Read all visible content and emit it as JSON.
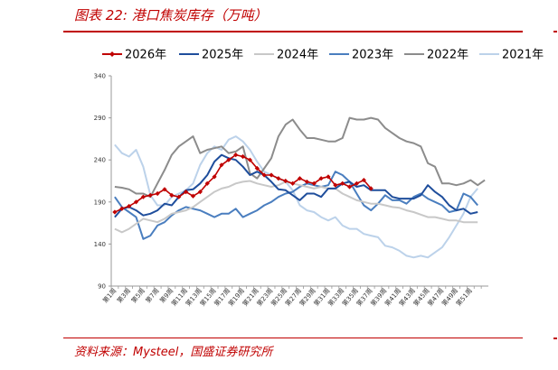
{
  "page": {
    "title": "图表 22:  港口焦炭库存（万吨）",
    "source": "资料来源：Mysteel，国盛证券研究所"
  },
  "colors": {
    "accent": "#c00000",
    "s2026": "#c00000",
    "s2025": "#1f4e9c",
    "s2024": "#c8c8c8",
    "s2023": "#4a7ebf",
    "s2022": "#8c8c8c",
    "s2021": "#bcd2ea"
  },
  "chart_data": {
    "type": "line",
    "ylim": [
      90,
      340
    ],
    "yticks": [
      90,
      140,
      190,
      240,
      290,
      340
    ],
    "xticks": [
      "第1周",
      "第3周",
      "第5周",
      "第7周",
      "第9周",
      "第11周",
      "第13周",
      "第15周",
      "第17周",
      "第19周",
      "第21周",
      "第23周",
      "第25周",
      "第27周",
      "第29周",
      "第31周",
      "第33周",
      "第35周",
      "第37周",
      "第39周",
      "第41周",
      "第43周",
      "第45周",
      "第47周",
      "第49周",
      "第51周"
    ],
    "legend_position": "top",
    "series": [
      {
        "name": "2026年",
        "color_key": "s2026",
        "markers": true,
        "values": [
          178,
          182,
          185,
          190,
          196,
          198,
          200,
          205,
          198,
          196,
          202,
          197,
          202,
          212,
          220,
          234,
          240,
          246,
          244,
          240,
          230,
          222,
          222,
          218,
          215,
          212,
          218,
          214,
          212,
          218,
          220,
          210,
          212,
          208,
          212,
          216,
          206
        ]
      },
      {
        "name": "2025年",
        "color_key": "s2025",
        "values": [
          172,
          182,
          184,
          180,
          174,
          176,
          180,
          188,
          186,
          196,
          204,
          205,
          212,
          222,
          238,
          246,
          242,
          240,
          232,
          222,
          226,
          222,
          214,
          205,
          204,
          198,
          192,
          200,
          200,
          196,
          206,
          206,
          212,
          214,
          208,
          210,
          204,
          204,
          204,
          196,
          194,
          194,
          194,
          198,
          210,
          202,
          196,
          186,
          180,
          182,
          176,
          178
        ]
      },
      {
        "name": "2024年",
        "color_key": "s2024",
        "values": [
          158,
          154,
          158,
          164,
          170,
          168,
          166,
          170,
          176,
          178,
          180,
          184,
          190,
          196,
          202,
          206,
          208,
          212,
          214,
          215,
          212,
          210,
          208,
          210,
          214,
          212,
          210,
          208,
          206,
          208,
          206,
          206,
          200,
          196,
          192,
          190,
          188,
          188,
          186,
          184,
          183,
          180,
          178,
          175,
          172,
          172,
          170,
          168,
          168,
          166,
          166,
          166
        ]
      },
      {
        "name": "2023年",
        "color_key": "s2023",
        "values": [
          196,
          184,
          178,
          172,
          146,
          150,
          162,
          166,
          174,
          180,
          184,
          182,
          180,
          176,
          172,
          176,
          176,
          182,
          172,
          176,
          180,
          186,
          190,
          196,
          200,
          202,
          208,
          212,
          210,
          208,
          210,
          226,
          222,
          214,
          200,
          186,
          180,
          188,
          198,
          192,
          192,
          188,
          196,
          200,
          194,
          190,
          186,
          178,
          180,
          200,
          196,
          186
        ]
      },
      {
        "name": "2022年",
        "color_key": "s2022",
        "values": [
          208,
          207,
          205,
          200,
          200,
          196,
          212,
          228,
          246,
          256,
          262,
          268,
          248,
          252,
          254,
          256,
          248,
          250,
          256,
          224,
          218,
          230,
          242,
          268,
          282,
          288,
          276,
          266,
          266,
          264,
          262,
          262,
          266,
          290,
          288,
          288,
          290,
          288,
          278,
          272,
          266,
          262,
          260,
          256,
          236,
          232,
          212,
          212,
          210,
          212,
          216,
          210,
          216
        ]
      },
      {
        "name": "2021年",
        "color_key": "s2021",
        "values": [
          258,
          248,
          244,
          252,
          232,
          198,
          186,
          186,
          196,
          200,
          204,
          212,
          234,
          248,
          256,
          252,
          264,
          268,
          262,
          252,
          238,
          226,
          222,
          218,
          214,
          204,
          186,
          180,
          178,
          172,
          168,
          172,
          162,
          158,
          158,
          152,
          150,
          148,
          138,
          136,
          132,
          126,
          124,
          126,
          124,
          130,
          136,
          148,
          162,
          176,
          196,
          206
        ]
      }
    ]
  }
}
